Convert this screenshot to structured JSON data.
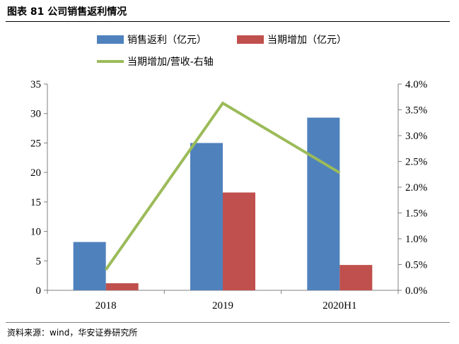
{
  "header": {
    "title": "图表 81  公司销售返利情况"
  },
  "footer": {
    "source": "资料来源：wind，华安证券研究所"
  },
  "chart_data": {
    "type": "bar",
    "categories": [
      "2018",
      "2019",
      "2020H1"
    ],
    "series": [
      {
        "name": "销售返利（亿元）",
        "kind": "bar",
        "axis": "left",
        "color": "#4f81bd",
        "values": [
          8.2,
          25.0,
          29.3
        ]
      },
      {
        "name": "当期增加（亿元）",
        "kind": "bar",
        "axis": "left",
        "color": "#c0504d",
        "values": [
          1.2,
          16.6,
          4.3
        ]
      },
      {
        "name": "当期增加/营收-右轴",
        "kind": "line",
        "axis": "right",
        "color": "#9bbb59",
        "values": [
          0.4,
          3.63,
          2.28
        ]
      }
    ],
    "ylim": [
      0,
      35
    ],
    "yticks": [
      "0",
      "5",
      "10",
      "15",
      "20",
      "25",
      "30",
      "35"
    ],
    "y2lim": [
      0,
      4.0
    ],
    "y2ticks": [
      "0.0%",
      "0.5%",
      "1.0%",
      "1.5%",
      "2.0%",
      "2.5%",
      "3.0%",
      "3.5%",
      "4.0%"
    ],
    "grid": false,
    "legend_position": "top"
  }
}
